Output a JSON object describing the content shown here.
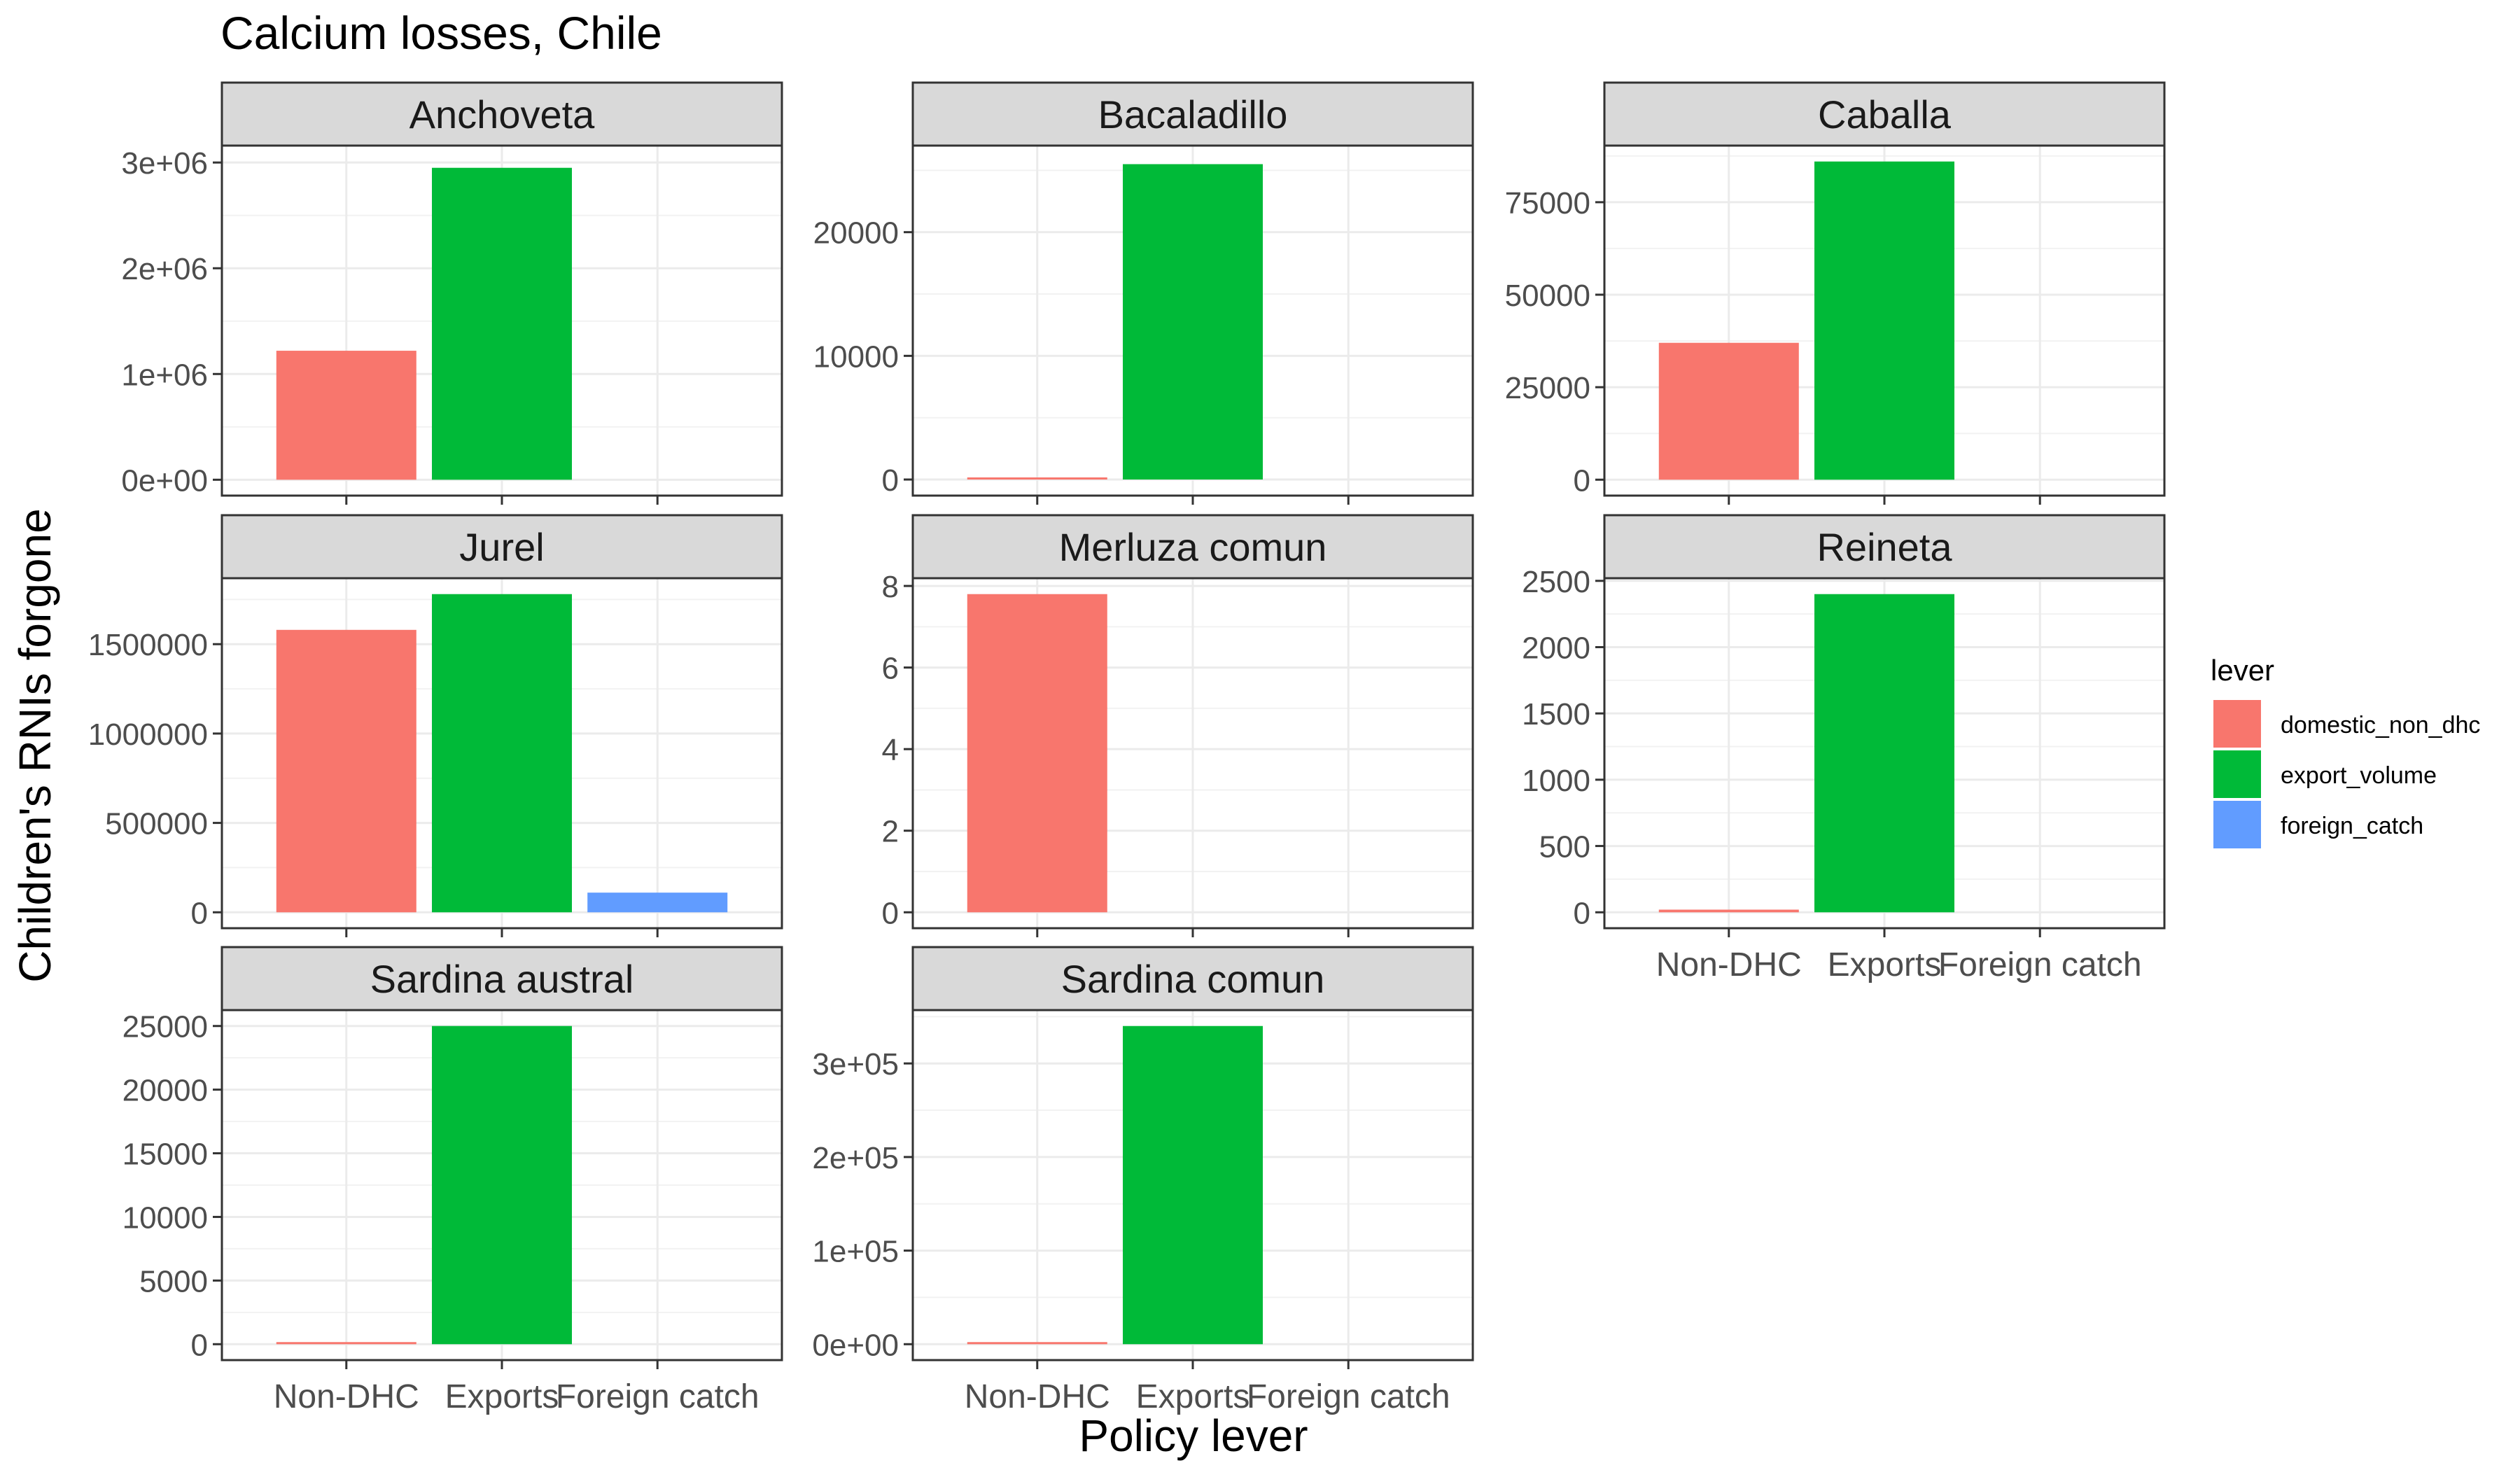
{
  "chart_data": {
    "type": "bar",
    "title": "Calcium losses, Chile",
    "xlabel": "Policy lever",
    "ylabel": "Children's RNIs forgone",
    "categories": [
      "Non-DHC",
      "Exports",
      "Foreign catch"
    ],
    "legend": {
      "title": "lever",
      "placement": "right",
      "entries": [
        {
          "name": "domestic_non_dhc",
          "color": "#F8766D"
        },
        {
          "name": "export_volume",
          "color": "#00BA38"
        },
        {
          "name": "foreign_catch",
          "color": "#619CFF"
        }
      ]
    },
    "grid": true,
    "facets": [
      {
        "name": "Anchoveta",
        "values": [
          1220000,
          2950000,
          0
        ],
        "ylim": [
          -150000,
          3160000
        ],
        "ticks": [
          0,
          1000000,
          2000000,
          3000000
        ],
        "tick_labels": [
          "0e+00",
          "1e+06",
          "2e+06",
          "3e+06"
        ]
      },
      {
        "name": "Bacaladillo",
        "values": [
          150,
          25500,
          0
        ],
        "ylim": [
          -1300,
          27000
        ],
        "ticks": [
          0,
          10000,
          20000
        ],
        "tick_labels": [
          "0",
          "10000",
          "20000"
        ]
      },
      {
        "name": "Caballa",
        "values": [
          37000,
          86000,
          0
        ],
        "ylim": [
          -4300,
          90300
        ],
        "ticks": [
          0,
          25000,
          50000,
          75000
        ],
        "tick_labels": [
          "0",
          "25000",
          "50000",
          "75000"
        ]
      },
      {
        "name": "Jurel",
        "values": [
          1580000,
          1780000,
          110000
        ],
        "ylim": [
          -89000,
          1869000
        ],
        "ticks": [
          0,
          500000,
          1000000,
          1500000
        ],
        "tick_labels": [
          "0",
          "500000",
          "1000000",
          "1500000"
        ]
      },
      {
        "name": "Merluza comun",
        "values": [
          7.8,
          0,
          0
        ],
        "ylim": [
          -0.39,
          8.19
        ],
        "ticks": [
          0,
          2,
          4,
          6,
          8
        ],
        "tick_labels": [
          "0",
          "2",
          "4",
          "6",
          "8"
        ]
      },
      {
        "name": "Reineta",
        "values": [
          20,
          2400,
          0
        ],
        "ylim": [
          -120,
          2520
        ],
        "ticks": [
          0,
          500,
          1000,
          1500,
          2000,
          2500
        ],
        "tick_labels": [
          "0",
          "500",
          "1000",
          "1500",
          "2000",
          "2500"
        ]
      },
      {
        "name": "Sardina austral",
        "values": [
          100,
          25000,
          0
        ],
        "ylim": [
          -1250,
          26250
        ],
        "ticks": [
          0,
          5000,
          10000,
          15000,
          20000,
          25000
        ],
        "tick_labels": [
          "0",
          "5000",
          "10000",
          "15000",
          "20000",
          "25000"
        ]
      },
      {
        "name": "Sardina comun",
        "values": [
          800,
          340000,
          0
        ],
        "ylim": [
          -17000,
          357000
        ],
        "ticks": [
          0,
          100000,
          200000,
          300000
        ],
        "tick_labels": [
          "0e+00",
          "1e+05",
          "2e+05",
          "3e+05"
        ]
      }
    ]
  }
}
